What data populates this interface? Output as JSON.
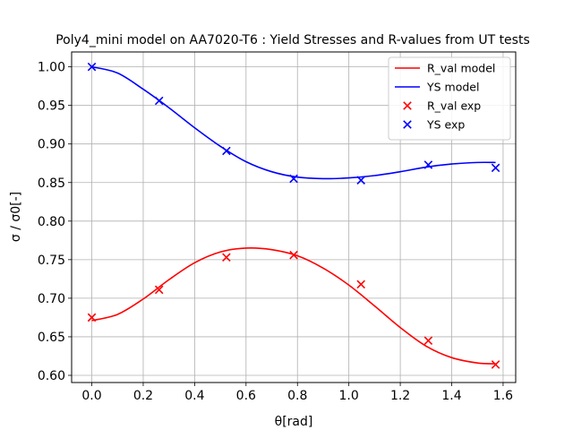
{
  "chart_data": {
    "type": "line",
    "title": "Poly4_mini model on AA7020-T6 : Yield Stresses and R-values from UT tests",
    "xlabel": "θ[rad]",
    "ylabel": "σ / σ0[-]",
    "xlim": [
      -0.0785,
      1.649
    ],
    "ylim": [
      0.5907,
      1.0193
    ],
    "xticks": [
      0.0,
      0.2,
      0.4,
      0.6,
      0.8,
      1.0,
      1.2,
      1.4,
      1.6
    ],
    "xtick_labels": [
      "0.0",
      "0.2",
      "0.4",
      "0.6",
      "0.8",
      "1.0",
      "1.2",
      "1.4",
      "1.6"
    ],
    "yticks": [
      0.6,
      0.65,
      0.7,
      0.75,
      0.8,
      0.85,
      0.9,
      0.95,
      1.0
    ],
    "ytick_labels": [
      "0.60",
      "0.65",
      "0.70",
      "0.75",
      "0.80",
      "0.85",
      "0.90",
      "0.95",
      "1.00"
    ],
    "grid": true,
    "legend_position": "top-right",
    "series": [
      {
        "name": "R_val model",
        "kind": "line",
        "color": "#ff0000",
        "x": [
          0.0,
          0.1,
          0.2,
          0.3,
          0.4,
          0.5,
          0.6,
          0.7,
          0.8,
          0.9,
          1.0,
          1.1,
          1.2,
          1.3,
          1.4,
          1.5,
          1.5708
        ],
        "y": [
          0.671,
          0.679,
          0.699,
          0.724,
          0.746,
          0.76,
          0.765,
          0.763,
          0.755,
          0.739,
          0.717,
          0.69,
          0.662,
          0.638,
          0.623,
          0.616,
          0.615
        ]
      },
      {
        "name": "YS model",
        "kind": "line",
        "color": "#0000ff",
        "x": [
          0.0,
          0.1,
          0.2,
          0.3,
          0.4,
          0.5,
          0.6,
          0.7,
          0.8,
          0.9,
          1.0,
          1.1,
          1.2,
          1.3,
          1.4,
          1.5,
          1.5708
        ],
        "y": [
          1.0,
          0.992,
          0.971,
          0.947,
          0.921,
          0.897,
          0.877,
          0.864,
          0.857,
          0.855,
          0.856,
          0.859,
          0.864,
          0.87,
          0.874,
          0.876,
          0.876
        ]
      },
      {
        "name": "R_val exp",
        "kind": "scatter",
        "color": "#ff0000",
        "x": [
          0.0,
          0.2618,
          0.5236,
          0.7854,
          1.0472,
          1.309,
          1.5708
        ],
        "y": [
          0.675,
          0.711,
          0.753,
          0.756,
          0.718,
          0.645,
          0.614
        ]
      },
      {
        "name": "YS exp",
        "kind": "scatter",
        "color": "#0000ff",
        "x": [
          0.0,
          0.2618,
          0.5236,
          0.7854,
          1.0472,
          1.309,
          1.5708
        ],
        "y": [
          1.0,
          0.956,
          0.891,
          0.855,
          0.853,
          0.873,
          0.869
        ]
      }
    ]
  }
}
